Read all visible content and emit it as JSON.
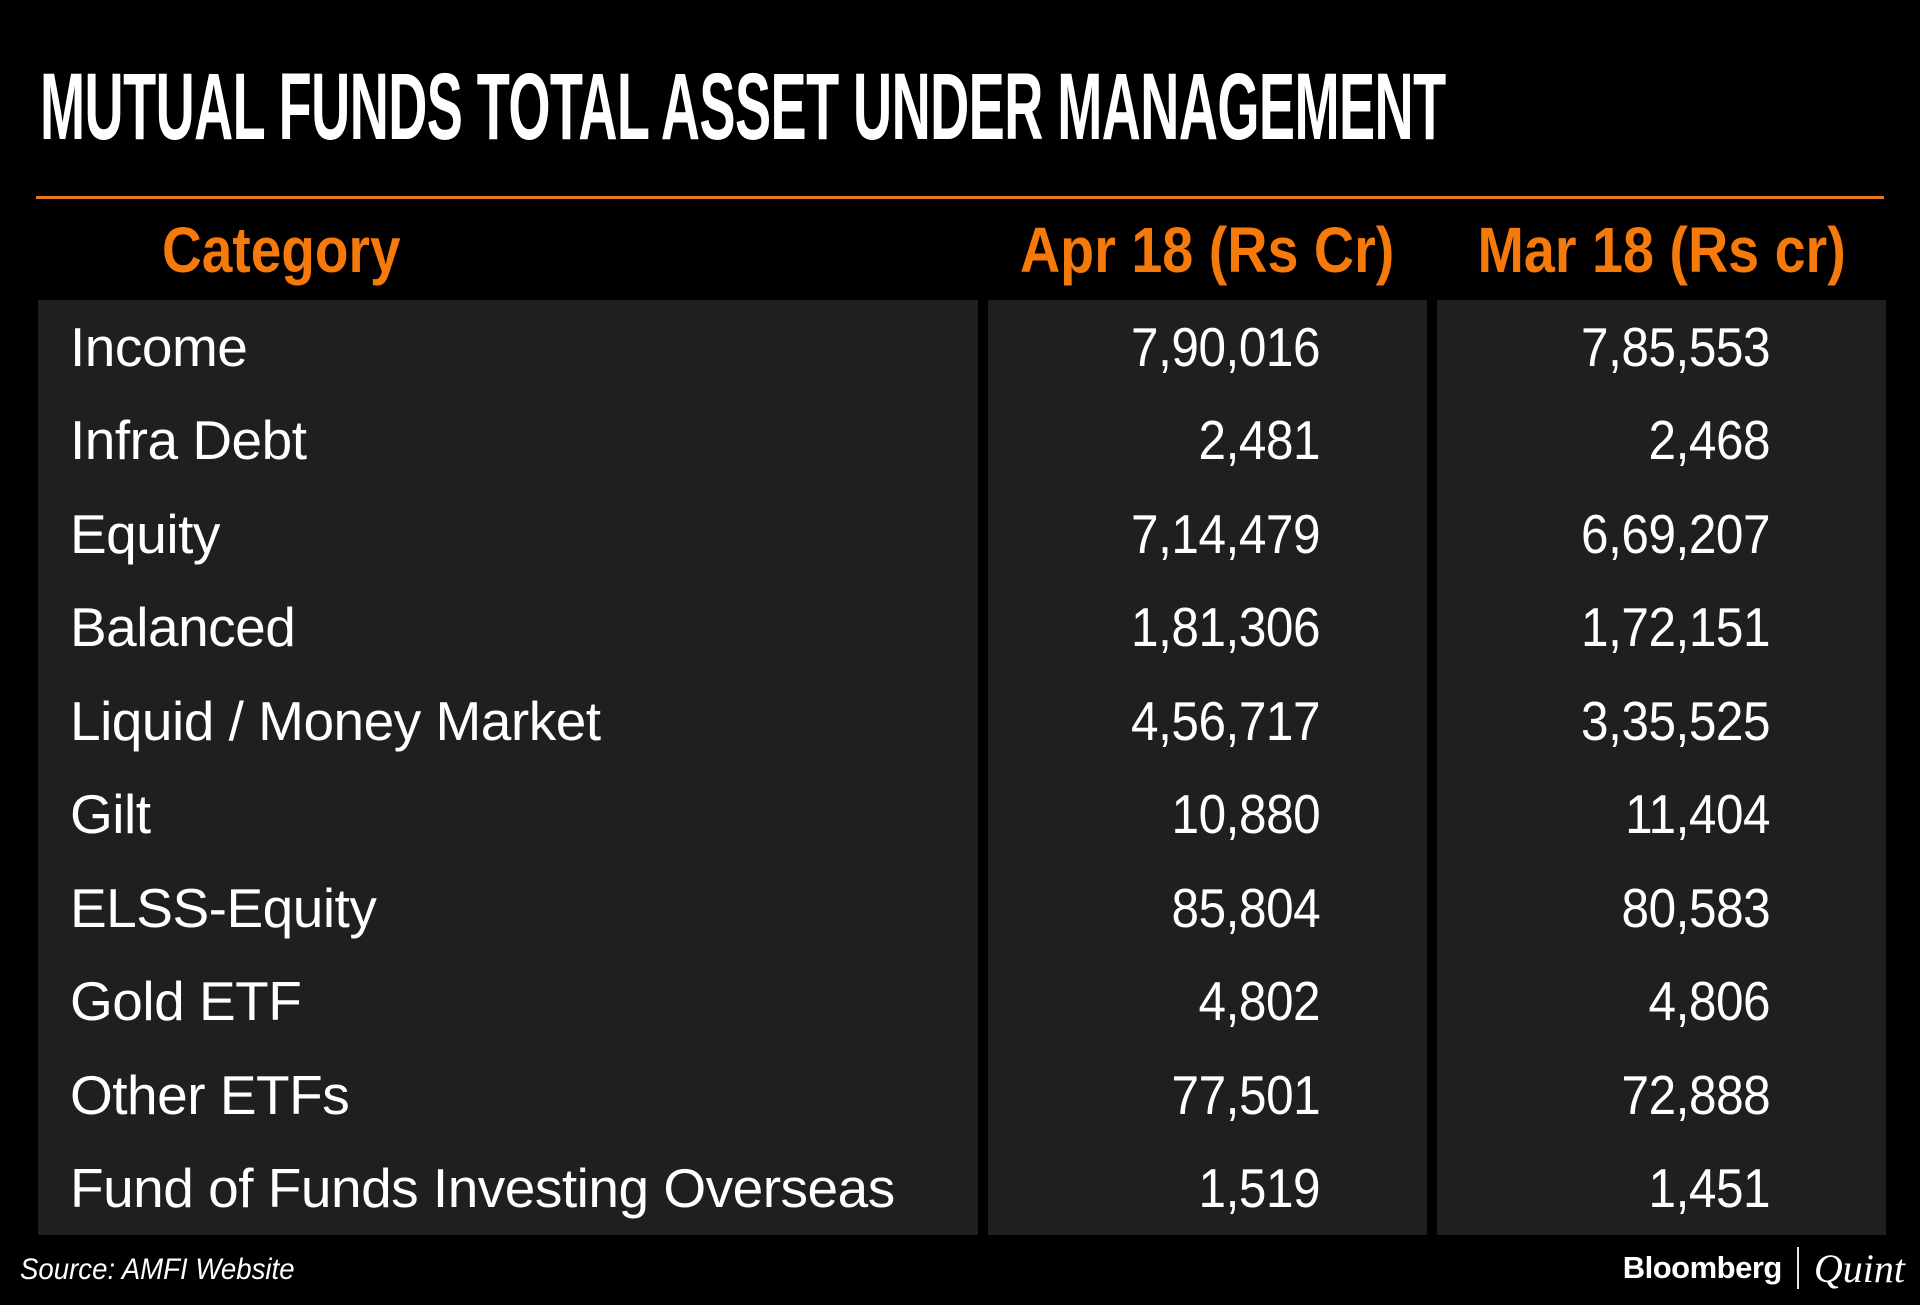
{
  "title": "MUTUAL FUNDS TOTAL ASSET UNDER MANAGEMENT",
  "colors": {
    "background": "#000000",
    "accent_orange": "#F5790B",
    "rule_orange": "#E8751A",
    "row_background": "#1F1F1F",
    "text": "#FFFFFF"
  },
  "table": {
    "columns": [
      "Category",
      "Apr 18 (Rs Cr)",
      "Mar 18 (Rs cr)"
    ],
    "rows": [
      {
        "category": "Income",
        "apr18": "7,90,016",
        "mar18": "7,85,553"
      },
      {
        "category": "Infra Debt",
        "apr18": "2,481",
        "mar18": "2,468"
      },
      {
        "category": "Equity",
        "apr18": "7,14,479",
        "mar18": "6,69,207"
      },
      {
        "category": "Balanced",
        "apr18": "1,81,306",
        "mar18": "1,72,151"
      },
      {
        "category": "Liquid / Money Market",
        "apr18": "4,56,717",
        "mar18": "3,35,525"
      },
      {
        "category": "Gilt",
        "apr18": "10,880",
        "mar18": "11,404"
      },
      {
        "category": "ELSS-Equity",
        "apr18": "85,804",
        "mar18": "80,583"
      },
      {
        "category": "Gold ETF",
        "apr18": "4,802",
        "mar18": "4,806"
      },
      {
        "category": "Other ETFs",
        "apr18": "77,501",
        "mar18": "72,888"
      },
      {
        "category": "Fund of Funds Investing Overseas",
        "apr18": "1,519",
        "mar18": "1,451"
      }
    ]
  },
  "footer": {
    "source": "Source: AMFI Website",
    "brand_bloomberg": "Bloomberg",
    "brand_quint": "Quint"
  },
  "chart_data": {
    "type": "table",
    "title": "MUTUAL FUNDS TOTAL ASSET UNDER MANAGEMENT",
    "categories": [
      "Income",
      "Infra Debt",
      "Equity",
      "Balanced",
      "Liquid / Money Market",
      "Gilt",
      "ELSS-Equity",
      "Gold ETF",
      "Other ETFs",
      "Fund of Funds Investing Overseas"
    ],
    "series": [
      {
        "name": "Apr 18 (Rs Cr)",
        "values": [
          790016,
          2481,
          714479,
          181306,
          456717,
          10880,
          85804,
          4802,
          77501,
          1519
        ]
      },
      {
        "name": "Mar 18 (Rs cr)",
        "values": [
          785553,
          2468,
          669207,
          172151,
          335525,
          11404,
          80583,
          4806,
          72888,
          1451
        ]
      }
    ],
    "number_format": "indian-lakh-crore",
    "unit": "Rs Cr",
    "source": "AMFI Website"
  }
}
